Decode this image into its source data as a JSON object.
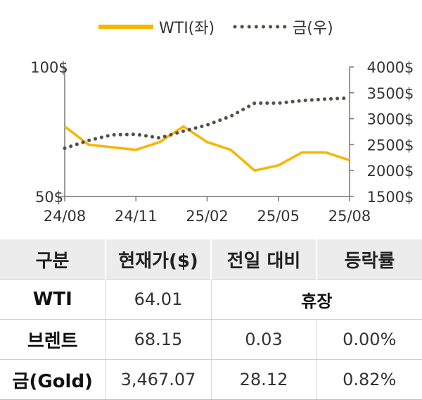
{
  "chart_data": {
    "type": "line",
    "x": [
      "24/08",
      "24/09",
      "24/10",
      "24/11",
      "24/12",
      "25/01",
      "25/02",
      "25/03",
      "25/04",
      "25/05",
      "25/06",
      "25/07",
      "25/08"
    ],
    "xticks": [
      "24/08",
      "24/11",
      "25/02",
      "25/05",
      "25/08"
    ],
    "series": [
      {
        "name": "WTI(좌)",
        "axis": "left",
        "color": "#f7b500",
        "style": "solid",
        "values": [
          77,
          70,
          69,
          68,
          71,
          77,
          71,
          68,
          60,
          62,
          67,
          67,
          64
        ]
      },
      {
        "name": "금(우)",
        "axis": "right",
        "color": "#5a4e43",
        "style": "dotted",
        "values": [
          2430,
          2580,
          2690,
          2700,
          2630,
          2760,
          2880,
          3050,
          3300,
          3300,
          3350,
          3380,
          3400
        ]
      }
    ],
    "yleft": {
      "ticks": [
        "100$",
        "50$"
      ],
      "lim": [
        50,
        100
      ]
    },
    "yright": {
      "ticks": [
        "4000$",
        "3500$",
        "3000$",
        "2500$",
        "2000$",
        "1500$"
      ],
      "lim": [
        1500,
        4000
      ]
    },
    "legend_position": "top"
  },
  "table": {
    "headers": [
      "구분",
      "현재가($)",
      "전일 대비",
      "등락률"
    ],
    "rows": [
      {
        "name": "WTI",
        "price": "64.01",
        "note": "휴장"
      },
      {
        "name": "브렌트",
        "price": "68.15",
        "change": "0.03",
        "rate": "0.00%"
      },
      {
        "name": "금(Gold)",
        "price": "3,467.07",
        "change": "28.12",
        "rate": "0.82%"
      }
    ]
  }
}
